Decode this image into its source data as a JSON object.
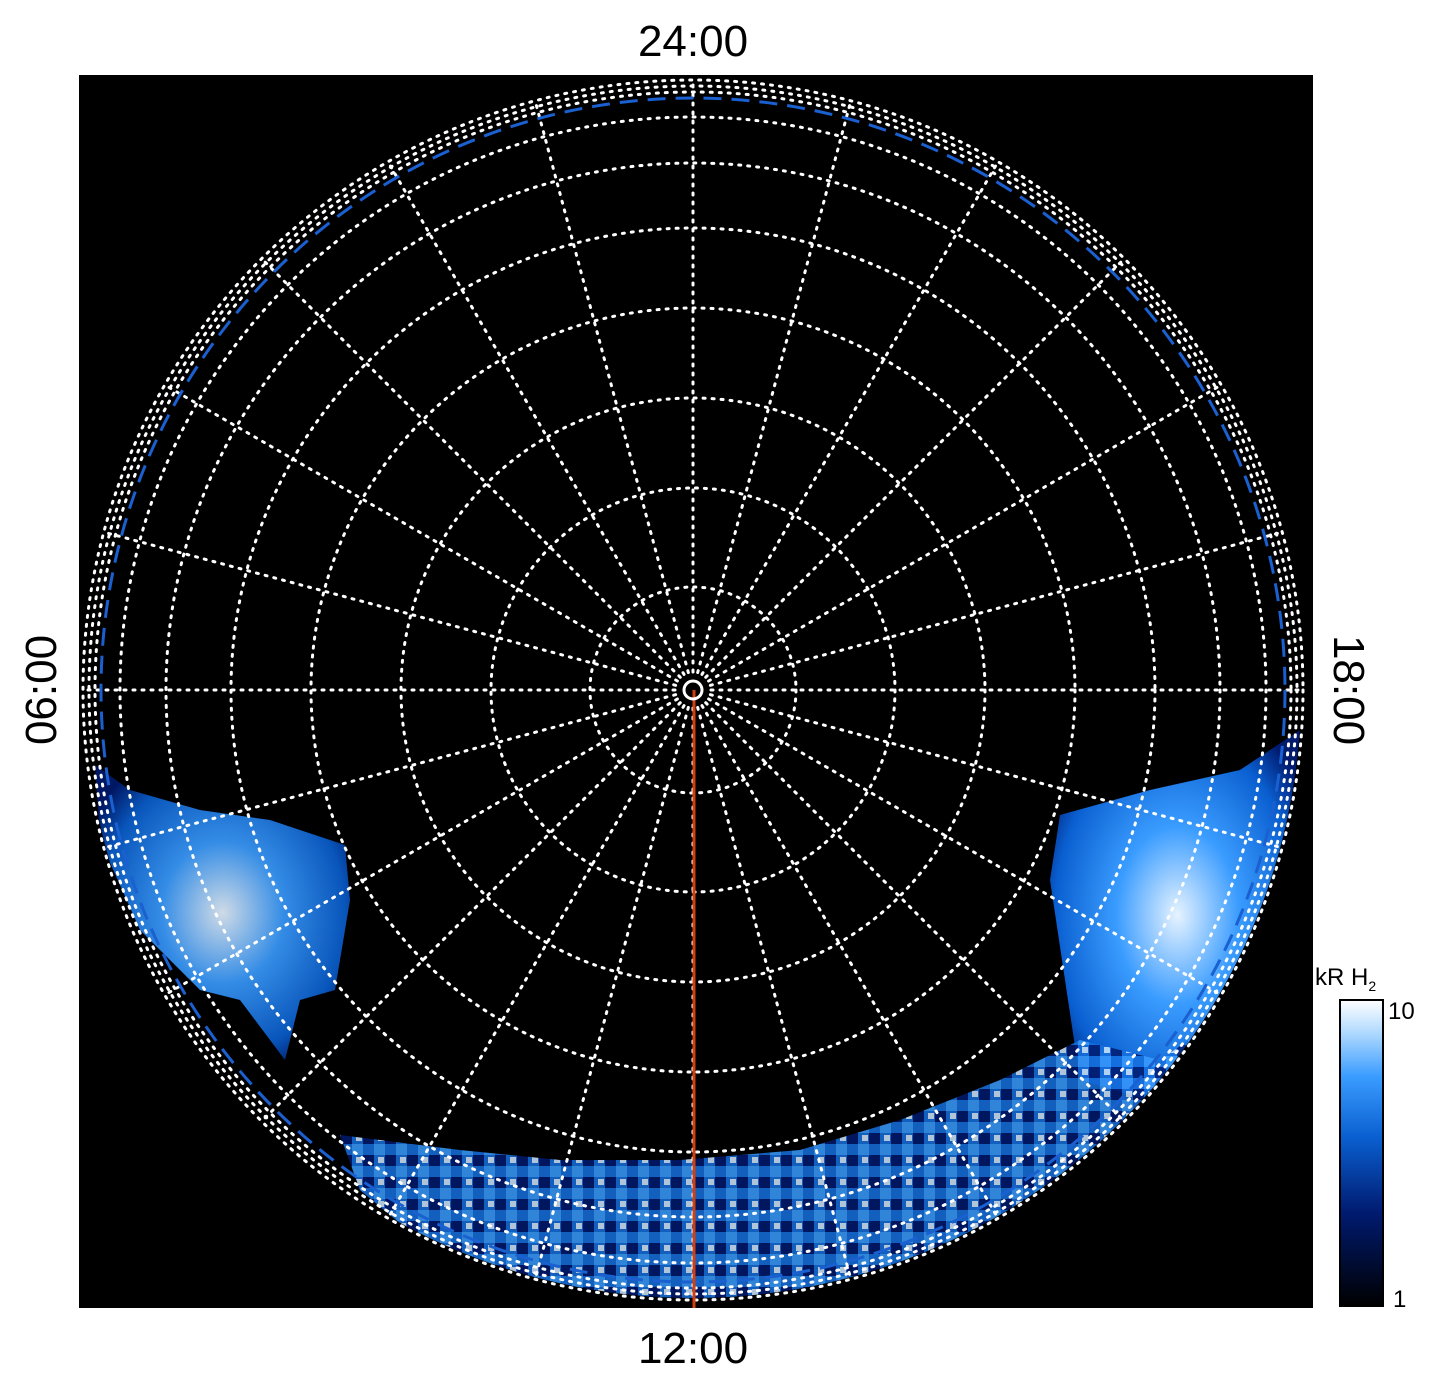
{
  "local_time_labels": {
    "top": "24:00",
    "bottom": "12:00",
    "left": "06:00",
    "right": "18:00"
  },
  "colorbar": {
    "title": "kR H",
    "title_subscript": "2",
    "top_label": "10",
    "bottom_label": "1"
  }
}
